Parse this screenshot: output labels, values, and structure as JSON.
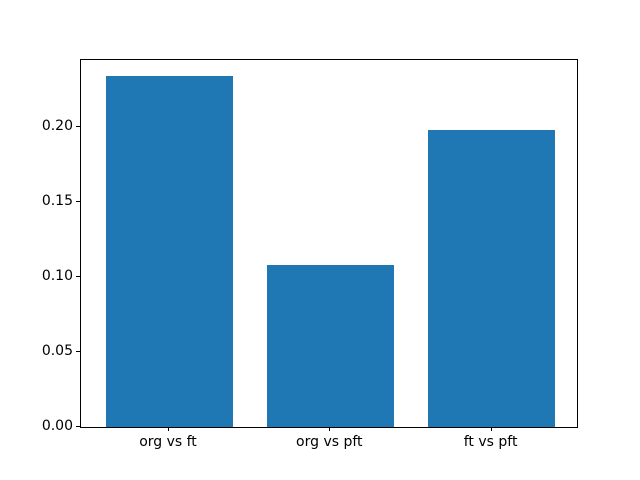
{
  "figure": {
    "background": "#ffffff",
    "frame_color": "#000000",
    "text_color": "#000000"
  },
  "chart_data": {
    "type": "bar",
    "title": "",
    "xlabel": "",
    "ylabel": "",
    "categories": [
      "org vs ft",
      "org vs pft",
      "ft vs pft"
    ],
    "values": [
      0.234,
      0.108,
      0.198
    ],
    "bar_color": "#1f77b4",
    "yticks": [
      0.0,
      0.05,
      0.1,
      0.15,
      0.2
    ],
    "ytick_labels": [
      "0.00",
      "0.05",
      "0.10",
      "0.15",
      "0.20"
    ],
    "ylim": [
      0,
      0.2446
    ],
    "grid": false,
    "legend": null
  }
}
